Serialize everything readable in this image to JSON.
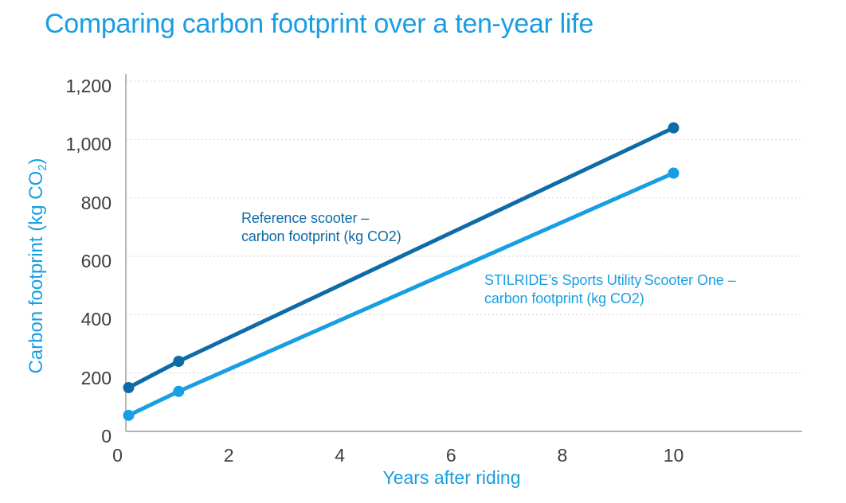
{
  "title": "Comparing carbon footprint over a ten-year life",
  "axes": {
    "x_title": "Years after riding",
    "y_title_pre": "Carbon footprint (kg CO",
    "y_title_sub": "2",
    "y_title_post": ")"
  },
  "colors": {
    "light_blue": "#189ee3",
    "dark_blue": "#0e6ba7",
    "tick_text": "#3d3d3d",
    "axis_line": "#9b9b9b",
    "gridline": "#cfcfcf",
    "background": "#ffffff"
  },
  "chart_data": {
    "type": "line",
    "title": "Comparing carbon footprint over a ten-year life",
    "xlabel": "Years after riding",
    "ylabel": "Carbon footprint (kg CO2)",
    "xlim": [
      0,
      12.3
    ],
    "ylim": [
      0,
      1200
    ],
    "x_ticks": [
      0,
      2,
      4,
      6,
      8,
      10
    ],
    "x_tick_labels": [
      "0",
      "2",
      "4",
      "6",
      "8",
      "10"
    ],
    "y_ticks": [
      0,
      200,
      400,
      600,
      800,
      1000,
      1200
    ],
    "y_tick_labels": [
      "0",
      "200",
      "400",
      "600",
      "800",
      "1,000",
      "1,200"
    ],
    "grid": "horizontal-dotted",
    "legend_position": "inline-annotations",
    "series": [
      {
        "name": "Reference scooter – carbon footprint (kg CO2)",
        "color": "#0e6ba7",
        "x": [
          0.2,
          1.1,
          10
        ],
        "values": [
          150,
          240,
          1040
        ]
      },
      {
        "name": "STILRIDE’s Sports Utility Scooter One – carbon footprint (kg CO2)",
        "color": "#189ee3",
        "x": [
          0.2,
          1.1,
          10
        ],
        "values": [
          55,
          137,
          885
        ]
      }
    ],
    "annotations": [
      {
        "line1": "Reference scooter –",
        "line2": "carbon footprint (kg CO2)",
        "series": 0
      },
      {
        "line1": "STILRIDE’s Sports Utility Scooter One –",
        "line2": "carbon footprint (kg CO2)",
        "series": 1
      }
    ]
  }
}
